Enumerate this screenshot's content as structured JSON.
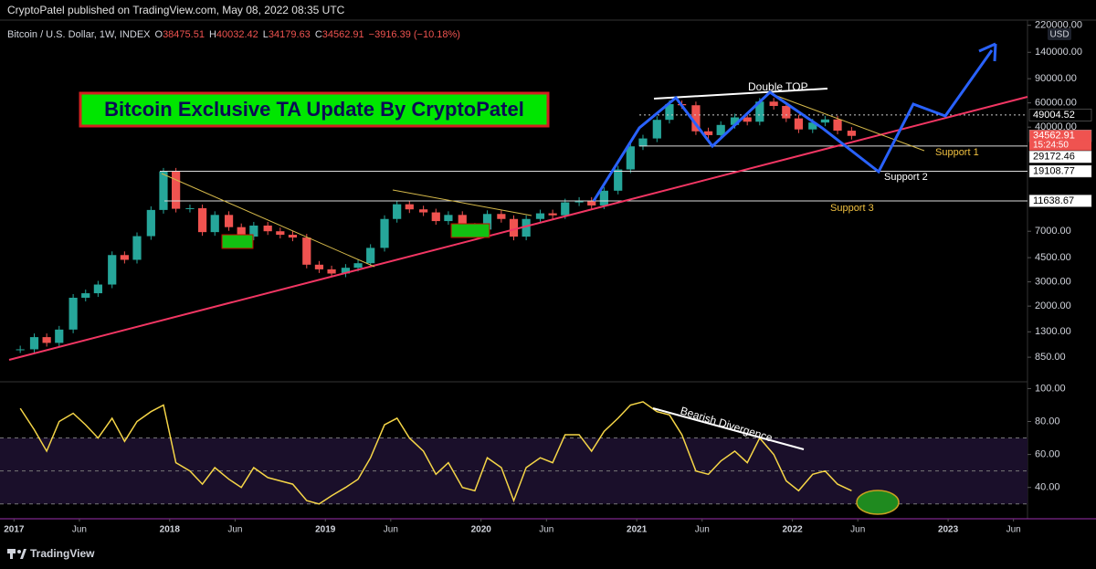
{
  "header": "CryptoPatel published on TradingView.com, May 08, 2022 08:35 UTC",
  "footer": "TradingView",
  "chart_data": [
    {
      "type": "candlestick",
      "title": "Bitcoin / U.S. Dollar, 1W, INDEX",
      "ohlc": [
        {
          "label": "O",
          "value": 38475.51
        },
        {
          "label": "H",
          "value": 40032.42
        },
        {
          "label": "L",
          "value": 34179.63
        },
        {
          "label": "C",
          "value": 34562.91
        }
      ],
      "change": "−3916.39 (−10.18%)",
      "currency": "USD",
      "countdown": "15:24:50",
      "log_scale": true,
      "x": [
        2017.04,
        2017.13,
        2017.21,
        2017.29,
        2017.38,
        2017.46,
        2017.54,
        2017.63,
        2017.71,
        2017.79,
        2017.88,
        2017.96,
        2018.04,
        2018.13,
        2018.21,
        2018.29,
        2018.38,
        2018.46,
        2018.54,
        2018.63,
        2018.71,
        2018.79,
        2018.88,
        2018.96,
        2019.04,
        2019.13,
        2019.21,
        2019.29,
        2019.38,
        2019.46,
        2019.54,
        2019.63,
        2019.71,
        2019.79,
        2019.88,
        2019.96,
        2020.04,
        2020.13,
        2020.21,
        2020.29,
        2020.38,
        2020.46,
        2020.54,
        2020.63,
        2020.71,
        2020.79,
        2020.88,
        2020.96,
        2021.04,
        2021.13,
        2021.21,
        2021.29,
        2021.38,
        2021.46,
        2021.54,
        2021.63,
        2021.71,
        2021.79,
        2021.88,
        2021.96,
        2022.04,
        2022.13,
        2022.21,
        2022.29,
        2022.38
      ],
      "series": [
        {
          "name": "Close",
          "up_color": "#26a69a",
          "down_color": "#ef5350",
          "values": [
            970,
            1190,
            1080,
            1350,
            2300,
            2480,
            2870,
            4700,
            4340,
            6450,
            10000,
            19000,
            10200,
            10300,
            6900,
            9200,
            7500,
            6400,
            7700,
            7000,
            6600,
            6300,
            4000,
            3700,
            3450,
            3800,
            4100,
            5300,
            8600,
            11000,
            10100,
            9600,
            8300,
            9200,
            7550,
            7200,
            9350,
            8600,
            6400,
            8600,
            9450,
            9140,
            11350,
            11650,
            10780,
            13800,
            19700,
            29000,
            33100,
            45200,
            58800,
            57700,
            37300,
            35000,
            41500,
            47100,
            43800,
            61300,
            57000,
            46300,
            38500,
            43200,
            45500,
            37700,
            34563
          ]
        }
      ],
      "xlim": [
        2016.91,
        2023.51
      ],
      "ylim": [
        590,
        240000
      ],
      "yticks": [
        {
          "value": 220000,
          "label": "220000.00"
        },
        {
          "value": 140000,
          "label": "140000.00"
        },
        {
          "value": 90000,
          "label": "90000.00"
        },
        {
          "value": 60000,
          "label": "60000.00"
        },
        {
          "value": 40000,
          "label": "40000.00"
        },
        {
          "value": 7000,
          "label": "7000.00"
        },
        {
          "value": 4500,
          "label": "4500.00"
        },
        {
          "value": 3000,
          "label": "3000.00"
        },
        {
          "value": 2000,
          "label": "2000.00"
        },
        {
          "value": 1300,
          "label": "1300.00"
        },
        {
          "value": 850,
          "label": "850.00"
        }
      ],
      "levels": [
        49004.52,
        34562.91,
        29172.46,
        19108.77,
        11638.67
      ],
      "annotations": {
        "banner": "Bitcoin Exclusive TA Update By CryptoPatel",
        "double_top": "Double TOP",
        "support_1": "Support 1",
        "support_2": "Support 2",
        "support_3": "Support 3"
      }
    },
    {
      "type": "line",
      "x": [
        2017.04,
        2017.13,
        2017.21,
        2017.29,
        2017.38,
        2017.46,
        2017.54,
        2017.63,
        2017.71,
        2017.79,
        2017.88,
        2017.96,
        2018.04,
        2018.13,
        2018.21,
        2018.29,
        2018.38,
        2018.46,
        2018.54,
        2018.63,
        2018.71,
        2018.79,
        2018.88,
        2018.96,
        2019.04,
        2019.13,
        2019.21,
        2019.29,
        2019.38,
        2019.46,
        2019.54,
        2019.63,
        2019.71,
        2019.79,
        2019.88,
        2019.96,
        2020.04,
        2020.13,
        2020.21,
        2020.29,
        2020.38,
        2020.46,
        2020.54,
        2020.63,
        2020.71,
        2020.79,
        2020.88,
        2020.96,
        2021.04,
        2021.13,
        2021.21,
        2021.29,
        2021.38,
        2021.46,
        2021.54,
        2021.63,
        2021.71,
        2021.79,
        2021.88,
        2021.96,
        2022.04,
        2022.13,
        2022.21,
        2022.29,
        2022.38
      ],
      "series": [
        {
          "name": "RSI",
          "color": "#f5d547",
          "values": [
            88,
            75,
            62,
            80,
            85,
            78,
            70,
            82,
            68,
            80,
            86,
            90,
            55,
            50,
            42,
            52,
            45,
            40,
            52,
            46,
            44,
            42,
            32,
            30,
            35,
            40,
            45,
            58,
            78,
            82,
            70,
            62,
            48,
            55,
            40,
            38,
            58,
            52,
            32,
            52,
            58,
            55,
            72,
            72,
            62,
            74,
            82,
            90,
            92,
            86,
            84,
            72,
            50,
            48,
            56,
            62,
            55,
            70,
            60,
            44,
            38,
            48,
            50,
            42,
            38
          ]
        }
      ],
      "xlim": [
        2016.91,
        2023.51
      ],
      "ylim": [
        21,
        103
      ],
      "yticks": [
        {
          "value": 100,
          "label": "100.00"
        },
        {
          "value": 80,
          "label": "80.00"
        },
        {
          "value": 60,
          "label": "60.00"
        },
        {
          "value": 40,
          "label": "40.00"
        }
      ],
      "levels": [
        70,
        50,
        30
      ],
      "xticks": [
        2017,
        {
          "value": 2017.42,
          "label": "Jun"
        },
        2018,
        {
          "value": 2018.42,
          "label": "Jun"
        },
        2019,
        {
          "value": 2019.42,
          "label": "Jun"
        },
        2020,
        {
          "value": 2020.42,
          "label": "Jun"
        },
        2021,
        {
          "value": 2021.42,
          "label": "Jun"
        },
        2022,
        {
          "value": 2022.42,
          "label": "Jun"
        },
        2023,
        {
          "value": 2023.42,
          "label": "Jun"
        }
      ],
      "annotations": {
        "divergence": "Bearish Divergence"
      }
    }
  ]
}
